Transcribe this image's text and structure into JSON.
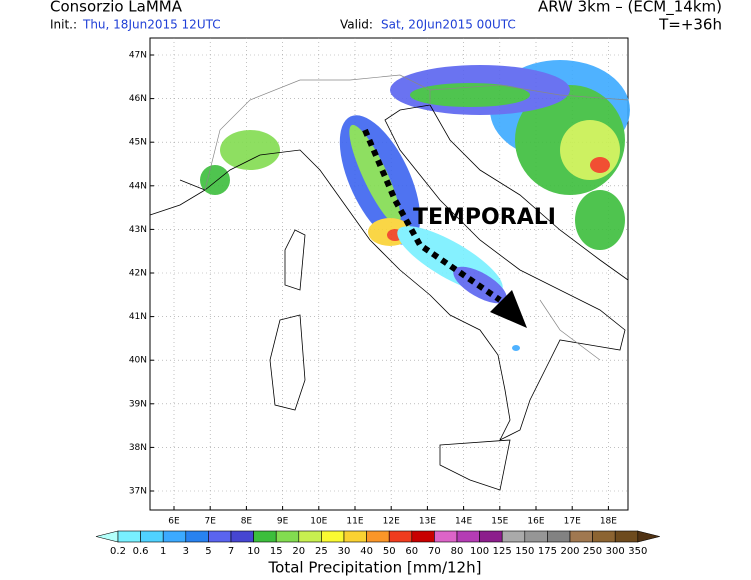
{
  "header": {
    "left_title": "Consorzio LaMMA",
    "init_label": "Init.:",
    "init_value": "Thu, 18Jun2015 12UTC",
    "valid_label": "Valid:",
    "valid_value": "Sat, 20Jun2015 00UTC",
    "model": "ARW 3km – (ECM_14km)",
    "lead": "T=+36h"
  },
  "map": {
    "lat_labels": [
      "47N",
      "46N",
      "45N",
      "44N",
      "43N",
      "42N",
      "41N",
      "40N",
      "39N",
      "38N",
      "37N"
    ],
    "lon_labels": [
      "6E",
      "7E",
      "8E",
      "9E",
      "10E",
      "11E",
      "12E",
      "13E",
      "14E",
      "15E",
      "16E",
      "17E",
      "18E"
    ],
    "annotation": "TEMPORALI"
  },
  "legend": {
    "labels": [
      "0.2",
      "0.6",
      "1",
      "3",
      "5",
      "7",
      "10",
      "15",
      "20",
      "25",
      "30",
      "40",
      "50",
      "60",
      "70",
      "80",
      "100",
      "125",
      "150",
      "175",
      "200",
      "250",
      "300",
      "350"
    ],
    "colors": [
      "#b4fffa",
      "#78f0ff",
      "#50d2ff",
      "#3caaff",
      "#2882f0",
      "#5a64f0",
      "#4646d2",
      "#3cbe3c",
      "#82dc50",
      "#c8f050",
      "#fafa32",
      "#fad232",
      "#fa9628",
      "#f03c1e",
      "#c80000",
      "#dc64c8",
      "#b43cb4",
      "#8c1e8c",
      "#aaaaaa",
      "#969696",
      "#828282",
      "#a07850",
      "#8c6432",
      "#6e4b1e",
      "#503214"
    ],
    "title": "Total Precipitation [mm/12h]"
  }
}
